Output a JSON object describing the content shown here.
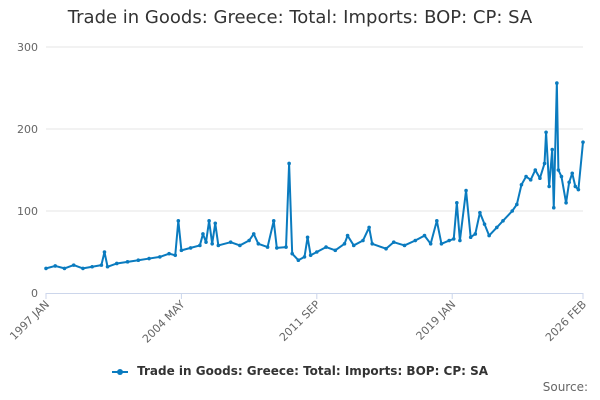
{
  "colors": {
    "series": "#0a7bbf",
    "grid": "#e6e6e6",
    "axis": "#ccd6eb"
  },
  "source_label": "Source:",
  "chart_data": {
    "type": "line",
    "title": "Trade in Goods: Greece: Total: Imports: BOP: CP: SA",
    "xlabel": "",
    "ylabel": "",
    "ylim": [
      0,
      300
    ],
    "yticks": [
      "0",
      "100",
      "200",
      "300"
    ],
    "xlim": [
      "1997-01",
      "2026-02"
    ],
    "xticks": [
      "1997 JAN",
      "2004 MAY",
      "2011 SEP",
      "2019 JAN",
      "2026 FEB"
    ],
    "grid": true,
    "legend": "bottom",
    "series": [
      {
        "name": "Trade in Goods: Greece: Total: Imports: BOP: CP: SA",
        "points": [
          [
            "1997-01",
            30
          ],
          [
            "1997-07",
            33
          ],
          [
            "1998-01",
            30
          ],
          [
            "1998-07",
            34
          ],
          [
            "1999-01",
            30
          ],
          [
            "1999-07",
            32
          ],
          [
            "2000-01",
            34
          ],
          [
            "2000-03",
            50
          ],
          [
            "2000-05",
            32
          ],
          [
            "2000-11",
            36
          ],
          [
            "2001-06",
            38
          ],
          [
            "2002-01",
            40
          ],
          [
            "2002-08",
            42
          ],
          [
            "2003-03",
            44
          ],
          [
            "2003-09",
            48
          ],
          [
            "2004-01",
            46
          ],
          [
            "2004-03",
            88
          ],
          [
            "2004-05",
            52
          ],
          [
            "2004-11",
            55
          ],
          [
            "2005-05",
            58
          ],
          [
            "2005-07",
            72
          ],
          [
            "2005-09",
            62
          ],
          [
            "2005-11",
            88
          ],
          [
            "2006-01",
            60
          ],
          [
            "2006-03",
            85
          ],
          [
            "2006-05",
            58
          ],
          [
            "2007-01",
            62
          ],
          [
            "2007-07",
            58
          ],
          [
            "2008-01",
            64
          ],
          [
            "2008-04",
            72
          ],
          [
            "2008-07",
            60
          ],
          [
            "2009-01",
            56
          ],
          [
            "2009-05",
            88
          ],
          [
            "2009-07",
            55
          ],
          [
            "2010-01",
            56
          ],
          [
            "2010-03",
            158
          ],
          [
            "2010-05",
            48
          ],
          [
            "2010-09",
            40
          ],
          [
            "2011-01",
            44
          ],
          [
            "2011-03",
            68
          ],
          [
            "2011-05",
            46
          ],
          [
            "2011-09",
            50
          ],
          [
            "2012-03",
            56
          ],
          [
            "2012-09",
            52
          ],
          [
            "2013-03",
            60
          ],
          [
            "2013-05",
            70
          ],
          [
            "2013-09",
            58
          ],
          [
            "2014-03",
            64
          ],
          [
            "2014-07",
            80
          ],
          [
            "2014-09",
            60
          ],
          [
            "2015-06",
            54
          ],
          [
            "2015-11",
            62
          ],
          [
            "2016-06",
            58
          ],
          [
            "2017-01",
            64
          ],
          [
            "2017-07",
            70
          ],
          [
            "2017-11",
            60
          ],
          [
            "2018-03",
            88
          ],
          [
            "2018-06",
            60
          ],
          [
            "2018-11",
            64
          ],
          [
            "2019-02",
            66
          ],
          [
            "2019-04",
            110
          ],
          [
            "2019-06",
            64
          ],
          [
            "2019-10",
            125
          ],
          [
            "2020-01",
            68
          ],
          [
            "2020-04",
            72
          ],
          [
            "2020-07",
            98
          ],
          [
            "2020-10",
            84
          ],
          [
            "2021-01",
            70
          ],
          [
            "2021-06",
            80
          ],
          [
            "2021-10",
            88
          ],
          [
            "2022-04",
            100
          ],
          [
            "2022-07",
            108
          ],
          [
            "2022-10",
            132
          ],
          [
            "2023-01",
            142
          ],
          [
            "2023-04",
            138
          ],
          [
            "2023-07",
            150
          ],
          [
            "2023-10",
            140
          ],
          [
            "2024-01",
            158
          ],
          [
            "2024-02",
            196
          ],
          [
            "2024-04",
            130
          ],
          [
            "2024-06",
            175
          ],
          [
            "2024-07",
            104
          ],
          [
            "2024-09",
            256
          ],
          [
            "2024-10",
            150
          ],
          [
            "2024-12",
            142
          ],
          [
            "2025-03",
            110
          ],
          [
            "2025-05",
            135
          ],
          [
            "2025-07",
            146
          ],
          [
            "2025-09",
            130
          ],
          [
            "2025-11",
            126
          ],
          [
            "2026-02",
            184
          ]
        ]
      }
    ]
  }
}
